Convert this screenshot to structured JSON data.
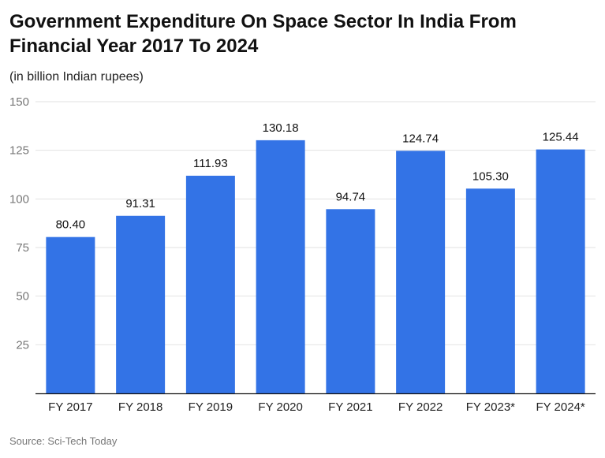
{
  "chart_data": {
    "type": "bar",
    "title": "Government Expenditure On Space Sector In India From Financial Year 2017 To 2024",
    "subtitle": "(in billion Indian rupees)",
    "categories": [
      "FY 2017",
      "FY 2018",
      "FY 2019",
      "FY 2020",
      "FY 2021",
      "FY 2022",
      "FY 2023*",
      "FY 2024*"
    ],
    "values": [
      80.4,
      91.31,
      111.93,
      130.18,
      94.74,
      124.74,
      105.3,
      125.44
    ],
    "value_labels": [
      "80.40",
      "91.31",
      "111.93",
      "130.18",
      "94.74",
      "124.74",
      "105.30",
      "125.44"
    ],
    "xlabel": "",
    "ylabel": "",
    "ylim": [
      0,
      150
    ],
    "yticks": [
      "25",
      "50",
      "75",
      "100",
      "125",
      "150"
    ],
    "ytick_values": [
      25,
      50,
      75,
      100,
      125,
      150
    ],
    "grid": true,
    "bar_color": "#3373e6",
    "source": "Source: Sci-Tech Today"
  }
}
